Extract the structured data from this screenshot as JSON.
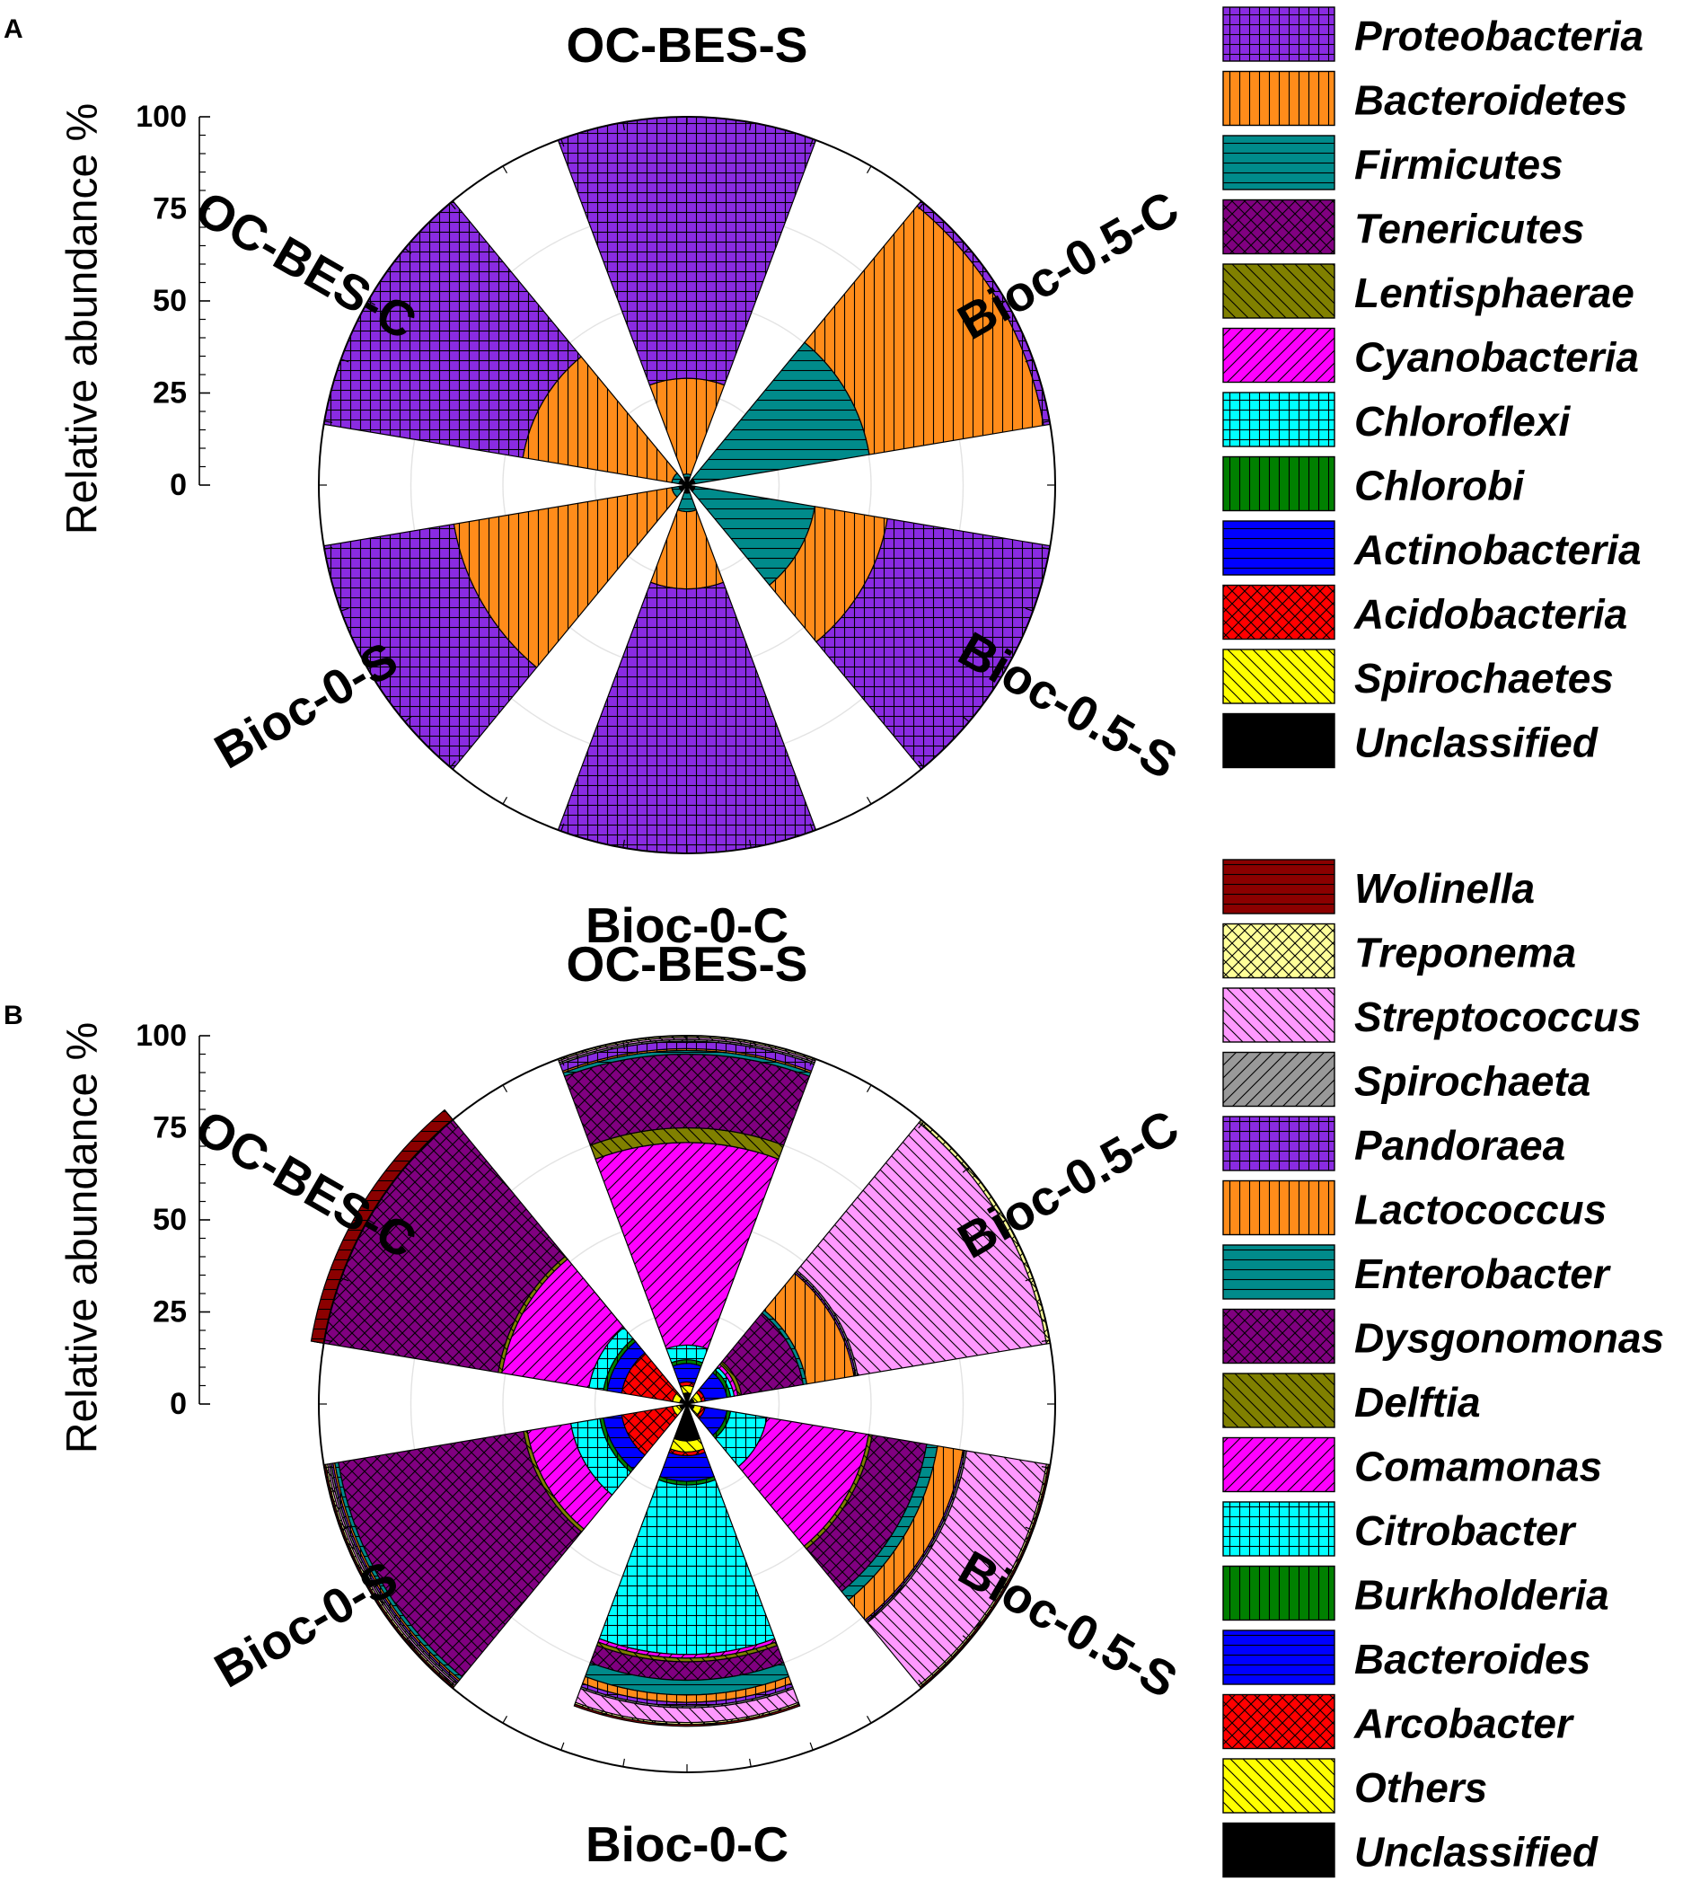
{
  "colors": {
    "Proteobacteria": "#8a2be2",
    "Bacteroidetes": "#ff8c1a",
    "Firmicutes": "#008b8b",
    "Tenericutes": "#800080",
    "Lentisphaerae": "#808000",
    "Cyanobacteria": "#ff00ff",
    "Chloroflexi": "#00ffff",
    "Chlorobi": "#008000",
    "Actinobacteria": "#0000ff",
    "Acidobacteria": "#ff0000",
    "Spirochaetes": "#ffff00",
    "Unclassified": "#000000",
    "Wolinella": "#8b0000",
    "Treponema": "#ffff99",
    "Streptococcus": "#ff99ff",
    "Spirochaeta": "#999999",
    "Pandoraea": "#8a2be2",
    "Lactococcus": "#ff8c1a",
    "Enterobacter": "#008b8b",
    "Dysgonomonas": "#800080",
    "Delftia": "#808000",
    "Comamonas": "#ff00ff",
    "Citrobacter": "#00ffff",
    "Burkholderia": "#008000",
    "Bacteroides": "#0000ff",
    "Arcobacter": "#ff0000",
    "Others": "#ffff00"
  },
  "chart_data": [
    {
      "panel": "A",
      "type": "polar-stacked-bar",
      "ylabel": "Relative abundance %",
      "ylim": [
        0,
        100
      ],
      "yticks": [
        "0",
        "25",
        "50",
        "75",
        "100"
      ],
      "categories": [
        "OC-BES-S",
        "Bioc-0.5-C",
        "Bioc-0.5-S",
        "Bioc-0-C",
        "Bioc-0-S",
        "OC-BES-C"
      ],
      "series": [
        {
          "name": "Unclassified",
          "pattern": "solid",
          "values": [
            0.5,
            0.5,
            0.5,
            0.5,
            0.5,
            0.5
          ]
        },
        {
          "name": "Spirochaetes",
          "pattern": "diagback",
          "values": [
            0.3,
            0.3,
            0.3,
            0.3,
            0.3,
            0.3
          ]
        },
        {
          "name": "Acidobacteria",
          "pattern": "cross",
          "values": [
            0.2,
            0.2,
            0.2,
            0.2,
            0.2,
            0.2
          ]
        },
        {
          "name": "Actinobacteria",
          "pattern": "horiz",
          "values": [
            0.2,
            0.2,
            0.2,
            0.2,
            0.2,
            0.2
          ]
        },
        {
          "name": "Chlorobi",
          "pattern": "vert",
          "values": [
            0.2,
            0.2,
            0.2,
            0.2,
            0.2,
            0.2
          ]
        },
        {
          "name": "Chloroflexi",
          "pattern": "grid",
          "values": [
            0.2,
            0.2,
            0.2,
            0.2,
            0.2,
            0.2
          ]
        },
        {
          "name": "Cyanobacteria",
          "pattern": "diagfwd",
          "values": [
            0.2,
            0.2,
            0.2,
            0.2,
            0.2,
            0.2
          ]
        },
        {
          "name": "Lentisphaerae",
          "pattern": "diagback",
          "values": [
            0.2,
            0.2,
            0.2,
            0.2,
            0.2,
            0.2
          ]
        },
        {
          "name": "Tenericutes",
          "pattern": "cross",
          "values": [
            0.2,
            0.2,
            0.2,
            0.2,
            0.2,
            0.2
          ]
        },
        {
          "name": "Firmicutes",
          "pattern": "horiz",
          "values": [
            0.8,
            48.0,
            33.0,
            5.0,
            2.0,
            2.0
          ]
        },
        {
          "name": "Bacteroidetes",
          "pattern": "vert",
          "values": [
            26.0,
            48.0,
            20.0,
            21.0,
            60.0,
            41.0
          ]
        },
        {
          "name": "Proteobacteria",
          "pattern": "grid",
          "values": [
            71.0,
            2.0,
            45.0,
            72.0,
            36.0,
            55.0
          ]
        }
      ],
      "legend": [
        "Proteobacteria",
        "Bacteroidetes",
        "Firmicutes",
        "Tenericutes",
        "Lentisphaerae",
        "Cyanobacteria",
        "Chloroflexi",
        "Chlorobi",
        "Actinobacteria",
        "Acidobacteria",
        "Spirochaetes",
        "Unclassified"
      ]
    },
    {
      "panel": "B",
      "type": "polar-stacked-bar",
      "ylabel": "Relative abundance %",
      "ylim": [
        0,
        100
      ],
      "yticks": [
        "0",
        "25",
        "50",
        "75",
        "100"
      ],
      "categories": [
        "OC-BES-S",
        "Bioc-0.5-C",
        "Bioc-0.5-S",
        "Bioc-0-C",
        "Bioc-0-S",
        "OC-BES-C"
      ],
      "series": [
        {
          "name": "Unclassified",
          "pattern": "solid",
          "values": [
            3,
            2,
            2,
            10,
            2,
            2
          ]
        },
        {
          "name": "Others",
          "pattern": "diagback",
          "values": [
            2,
            2,
            2,
            3,
            2,
            2
          ]
        },
        {
          "name": "Arcobacter",
          "pattern": "cross",
          "values": [
            1,
            1,
            1,
            1,
            14,
            14
          ]
        },
        {
          "name": "Bacteroides",
          "pattern": "horiz",
          "values": [
            5,
            6,
            6,
            7,
            5,
            4
          ]
        },
        {
          "name": "Burkholderia",
          "pattern": "vert",
          "values": [
            1,
            1,
            1,
            1,
            1,
            1
          ]
        },
        {
          "name": "Citrobacter",
          "pattern": "grid",
          "values": [
            4,
            1,
            10,
            46,
            8,
            4
          ]
        },
        {
          "name": "Comamonas",
          "pattern": "diagfwd",
          "values": [
            55,
            1,
            28,
            1,
            12,
            24
          ]
        },
        {
          "name": "Delftia",
          "pattern": "diagback",
          "values": [
            4,
            1,
            1,
            1,
            1,
            1
          ]
        },
        {
          "name": "Dysgonomonas",
          "pattern": "cross",
          "values": [
            20,
            17,
            15,
            5,
            51,
            48
          ]
        },
        {
          "name": "Enterobacter",
          "pattern": "horiz",
          "values": [
            1,
            1,
            3,
            4,
            1,
            1
          ]
        },
        {
          "name": "Lactococcus",
          "pattern": "vert",
          "values": [
            0.5,
            13,
            7,
            2,
            0.5,
            0.5
          ]
        },
        {
          "name": "Pandoraea",
          "pattern": "grid",
          "values": [
            2,
            0.5,
            0.5,
            1,
            0.5,
            0.5
          ]
        },
        {
          "name": "Spirochaeta",
          "pattern": "diagfwd",
          "values": [
            0.5,
            0.5,
            0.5,
            0.5,
            0.5,
            0.5
          ]
        },
        {
          "name": "Streptococcus",
          "pattern": "diagback",
          "values": [
            0.5,
            52,
            22,
            4,
            0.5,
            0.5
          ]
        },
        {
          "name": "Treponema",
          "pattern": "cross",
          "values": [
            0.5,
            1,
            0.5,
            0.5,
            0.5,
            0.5
          ]
        },
        {
          "name": "Wolinella",
          "pattern": "horiz",
          "values": [
            0.5,
            0.5,
            0.5,
            0.5,
            2,
            0.5
          ]
        }
      ],
      "legend": [
        "Wolinella",
        "Treponema",
        "Streptococcus",
        "Spirochaeta",
        "Pandoraea",
        "Lactococcus",
        "Enterobacter",
        "Dysgonomonas",
        "Delftia",
        "Comamonas",
        "Citrobacter",
        "Burkholderia",
        "Bacteroides",
        "Arcobacter",
        "Others",
        "Unclassified"
      ]
    }
  ]
}
